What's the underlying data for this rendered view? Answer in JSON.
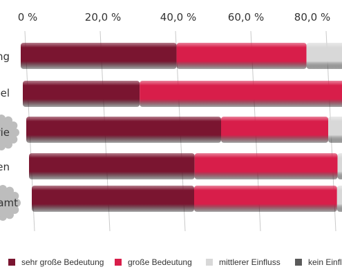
{
  "chart_data": {
    "type": "bar",
    "stacked": true,
    "horizontal": true,
    "xlim": [
      0,
      100
    ],
    "x_tick_labels": [
      "0 %",
      "20,0 %",
      "40,0 %",
      "60,0 %",
      "80,0 %"
    ],
    "grid": true,
    "categories": [
      "ng",
      "del",
      "rie",
      "uren",
      "amt"
    ],
    "series": [
      {
        "name": "sehr große Bedeutung",
        "color": "#7a1530",
        "values": [
          48,
          36,
          60,
          51,
          50
        ]
      },
      {
        "name": "große Bedeutung",
        "color": "#d81e4a",
        "values": [
          40,
          64,
          33,
          44,
          44
        ]
      },
      {
        "name": "mittlerer Einfluss",
        "color": "#d8d8d8",
        "values": [
          12,
          0,
          7,
          3,
          6
        ]
      },
      {
        "name": "kein Einfluss",
        "color": "#5a5a5a",
        "values": [
          0,
          0,
          0,
          2,
          0
        ]
      }
    ],
    "legend_position": "bottom"
  }
}
